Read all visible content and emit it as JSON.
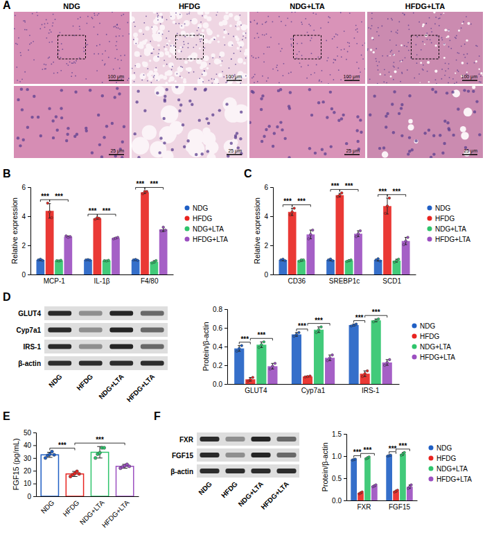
{
  "chart_data": [
    {
      "panel": "A",
      "type": "image",
      "columns": [
        "NDG",
        "HFDG",
        "NDG+LTA",
        "HFDG+LTA"
      ],
      "scale_labels": [
        "100 μm",
        "25 μm"
      ]
    },
    {
      "panel": "B",
      "type": "bar",
      "ylabel": "Relative expression",
      "categories": [
        "MCP-1",
        "IL-1β",
        "F4/80"
      ],
      "ylim": [
        0,
        6
      ],
      "yticks": [
        0,
        2,
        4,
        6
      ],
      "grid": false,
      "legend": "right",
      "series": [
        {
          "name": "NDG",
          "color": "#1f5fc4",
          "values": [
            1.0,
            1.0,
            1.0
          ],
          "errors": [
            0.05,
            0.03,
            0.04
          ],
          "points": [
            [
              1.0,
              1.05,
              0.97
            ],
            [
              1.0,
              1.02,
              0.98
            ],
            [
              1.0,
              1.03,
              0.97
            ]
          ]
        },
        {
          "name": "HFDG",
          "color": "#e8231f",
          "values": [
            4.37,
            3.85,
            5.65
          ],
          "errors": [
            0.5,
            0.05,
            0.09
          ],
          "points": [
            [
              4.9,
              4.3,
              3.9
            ],
            [
              3.8,
              3.9,
              3.85
            ],
            [
              5.55,
              5.7,
              5.7
            ]
          ]
        },
        {
          "name": "NDG+LTA",
          "color": "#2ec46b",
          "values": [
            0.95,
            0.95,
            0.87
          ],
          "errors": [
            0.03,
            0.03,
            0.08
          ],
          "points": [
            [
              0.95,
              0.93,
              0.97
            ],
            [
              0.95,
              0.93,
              0.97
            ],
            [
              0.8,
              0.85,
              0.95
            ]
          ]
        },
        {
          "name": "HFDG+LTA",
          "color": "#9b4fc0",
          "values": [
            2.6,
            2.5,
            3.1
          ],
          "errors": [
            0.05,
            0.05,
            0.15
          ],
          "points": [
            [
              2.65,
              2.55,
              2.6
            ],
            [
              2.45,
              2.5,
              2.55
            ],
            [
              3.0,
              3.25,
              3.05
            ]
          ]
        }
      ],
      "annotations": [
        {
          "text": "***",
          "category": 0,
          "pair": [
            0,
            1
          ]
        },
        {
          "text": "***",
          "category": 0,
          "pair": [
            1,
            3
          ]
        },
        {
          "text": "***",
          "category": 1,
          "pair": [
            0,
            1
          ]
        },
        {
          "text": "***",
          "category": 1,
          "pair": [
            1,
            3
          ]
        },
        {
          "text": "***",
          "category": 2,
          "pair": [
            0,
            1
          ]
        },
        {
          "text": "***",
          "category": 2,
          "pair": [
            1,
            3
          ]
        }
      ]
    },
    {
      "panel": "C",
      "type": "bar",
      "ylabel": "Relative expression",
      "categories": [
        "CD36",
        "SREBP1c",
        "SCD1"
      ],
      "ylim": [
        0,
        6
      ],
      "yticks": [
        0,
        2,
        4,
        6
      ],
      "grid": false,
      "legend": "right",
      "series": [
        {
          "name": "NDG",
          "color": "#1f5fc4",
          "values": [
            1.0,
            1.0,
            1.0
          ],
          "errors": [
            0.06,
            0.06,
            0.08
          ],
          "points": [
            [
              1.0,
              1.05,
              0.95
            ],
            [
              1.0,
              1.06,
              0.95
            ],
            [
              1.0,
              1.08,
              0.93
            ]
          ]
        },
        {
          "name": "HFDG",
          "color": "#e8231f",
          "values": [
            4.3,
            5.45,
            4.7
          ],
          "errors": [
            0.25,
            0.12,
            0.55
          ],
          "points": [
            [
              4.1,
              4.3,
              4.55
            ],
            [
              5.35,
              5.45,
              5.6
            ],
            [
              4.2,
              4.7,
              5.25
            ]
          ]
        },
        {
          "name": "NDG+LTA",
          "color": "#2ec46b",
          "values": [
            0.97,
            0.95,
            0.95
          ],
          "errors": [
            0.06,
            0.05,
            0.1
          ],
          "points": [
            [
              0.92,
              1.0,
              1.0
            ],
            [
              0.9,
              0.95,
              1.0
            ],
            [
              0.85,
              0.95,
              1.05
            ]
          ]
        },
        {
          "name": "HFDG+LTA",
          "color": "#9b4fc0",
          "values": [
            2.75,
            2.8,
            2.3
          ],
          "errors": [
            0.3,
            0.2,
            0.25
          ],
          "points": [
            [
              2.45,
              2.75,
              3.05
            ],
            [
              2.6,
              2.8,
              3.0
            ],
            [
              2.05,
              2.3,
              2.55
            ]
          ]
        }
      ],
      "annotations": [
        {
          "text": "***",
          "category": 0,
          "pair": [
            0,
            1
          ]
        },
        {
          "text": "***",
          "category": 0,
          "pair": [
            1,
            3
          ]
        },
        {
          "text": "***",
          "category": 1,
          "pair": [
            0,
            1
          ]
        },
        {
          "text": "***",
          "category": 1,
          "pair": [
            1,
            3
          ]
        },
        {
          "text": "***",
          "category": 2,
          "pair": [
            0,
            1
          ]
        },
        {
          "text": "***",
          "category": 2,
          "pair": [
            1,
            3
          ]
        }
      ]
    },
    {
      "panel": "D",
      "type": "bar",
      "ylabel": "Protein/β-actin",
      "blot": {
        "rows": [
          "GLUT4",
          "Cyp7a1",
          "IRS-1",
          "β-actin"
        ],
        "lanes": [
          "NDG",
          "HFDG",
          "NDG+LTA",
          "HFDG+LTA"
        ]
      },
      "categories": [
        "GLUT4",
        "Cyp7a1",
        "IRS-1"
      ],
      "ylim": [
        0,
        0.8
      ],
      "yticks": [
        {
          "value": 0,
          "label": "0.0"
        },
        0.2,
        0.4,
        0.6,
        0.8
      ],
      "grid": false,
      "legend": "right",
      "series": [
        {
          "name": "NDG",
          "color": "#1f5fc4",
          "values": [
            0.38,
            0.53,
            0.63
          ],
          "errors": [
            0.03,
            0.02,
            0.01
          ],
          "points": [
            [
              0.35,
              0.38,
              0.41
            ],
            [
              0.51,
              0.53,
              0.55
            ],
            [
              0.62,
              0.63,
              0.64
            ]
          ]
        },
        {
          "name": "HFDG",
          "color": "#e8231f",
          "values": [
            0.05,
            0.08,
            0.11
          ],
          "errors": [
            0.02,
            0.005,
            0.03
          ],
          "points": [
            [
              0.03,
              0.05,
              0.07
            ],
            [
              0.075,
              0.08,
              0.085
            ],
            [
              0.08,
              0.11,
              0.14
            ]
          ]
        },
        {
          "name": "NDG+LTA",
          "color": "#2ec46b",
          "values": [
            0.42,
            0.58,
            0.68
          ],
          "errors": [
            0.03,
            0.03,
            0.015
          ],
          "points": [
            [
              0.39,
              0.42,
              0.45
            ],
            [
              0.55,
              0.58,
              0.61
            ],
            [
              0.665,
              0.68,
              0.695
            ]
          ]
        },
        {
          "name": "HFDG+LTA",
          "color": "#9b4fc0",
          "values": [
            0.19,
            0.28,
            0.23
          ],
          "errors": [
            0.03,
            0.03,
            0.03
          ],
          "points": [
            [
              0.16,
              0.19,
              0.22
            ],
            [
              0.25,
              0.28,
              0.31
            ],
            [
              0.2,
              0.23,
              0.26
            ]
          ]
        }
      ],
      "annotations": [
        {
          "text": "***",
          "category": 0,
          "pair": [
            0,
            1
          ]
        },
        {
          "text": "***",
          "category": 0,
          "pair": [
            1,
            3
          ]
        },
        {
          "text": "***",
          "category": 1,
          "pair": [
            0,
            1
          ]
        },
        {
          "text": "***",
          "category": 1,
          "pair": [
            1,
            3
          ]
        },
        {
          "text": "***",
          "category": 2,
          "pair": [
            0,
            1
          ]
        },
        {
          "text": "***",
          "category": 2,
          "pair": [
            1,
            3
          ]
        }
      ]
    },
    {
      "panel": "E",
      "type": "bar",
      "ylabel": "FGF15 (pg/mL)",
      "categories": [
        "NDG",
        "HFDG",
        "NDG+LTA",
        "HFDG+LTA"
      ],
      "values": [
        32.5,
        17.5,
        34.5,
        23.5
      ],
      "errors": [
        2,
        2,
        4.5,
        1.5
      ],
      "points": [
        [
          30,
          32,
          33,
          35,
          32.5
        ],
        [
          15.5,
          17,
          18,
          19.5,
          17.5
        ],
        [
          30,
          33,
          34,
          38,
          38
        ],
        [
          22,
          23,
          24,
          25,
          23.5
        ]
      ],
      "colors": [
        "#1f5fc4",
        "#e8231f",
        "#2ec46b",
        "#9b4fc0"
      ],
      "ylim": [
        0,
        50
      ],
      "yticks": [
        0,
        10,
        20,
        30,
        40,
        50
      ],
      "grid": false,
      "annotations": [
        {
          "text": "***",
          "pair": [
            0,
            1
          ]
        },
        {
          "text": "***",
          "pair": [
            1,
            3
          ]
        }
      ]
    },
    {
      "panel": "F",
      "type": "bar",
      "ylabel": "Protein/β-actin",
      "blot": {
        "rows": [
          "FXR",
          "FGF15",
          "β-actin"
        ],
        "lanes": [
          "NDG",
          "HFDG",
          "NDG+LTA",
          "HFDG+LTA"
        ]
      },
      "categories": [
        "FXR",
        "FGF15"
      ],
      "ylim": [
        0,
        1.5
      ],
      "yticks": [
        {
          "value": 0,
          "label": "0.0"
        },
        0.5,
        {
          "value": 1,
          "label": "1.0"
        },
        1.5
      ],
      "grid": false,
      "legend": "right",
      "series": [
        {
          "name": "NDG",
          "color": "#1f5fc4",
          "values": [
            0.92,
            1.01
          ],
          "errors": [
            0.01,
            0.01
          ],
          "points": [
            [
              0.91,
              0.92,
              0.93
            ],
            [
              1.0,
              1.01,
              1.02
            ]
          ]
        },
        {
          "name": "HFDG",
          "color": "#e8231f",
          "values": [
            0.17,
            0.21
          ],
          "errors": [
            0.02,
            0.02
          ],
          "points": [
            [
              0.15,
              0.17,
              0.19
            ],
            [
              0.19,
              0.21,
              0.23
            ]
          ]
        },
        {
          "name": "NDG+LTA",
          "color": "#2ec46b",
          "values": [
            0.96,
            1.05
          ],
          "errors": [
            0.02,
            0.03
          ],
          "points": [
            [
              0.94,
              0.96,
              0.98
            ],
            [
              1.02,
              1.05,
              1.08
            ]
          ]
        },
        {
          "name": "HFDG+LTA",
          "color": "#9b4fc0",
          "values": [
            0.33,
            0.31
          ],
          "errors": [
            0.02,
            0.04
          ],
          "points": [
            [
              0.31,
              0.33,
              0.35
            ],
            [
              0.27,
              0.31,
              0.35
            ]
          ]
        }
      ],
      "annotations": [
        {
          "text": "***",
          "category": 0,
          "pair": [
            0,
            1
          ]
        },
        {
          "text": "***",
          "category": 0,
          "pair": [
            1,
            3
          ]
        },
        {
          "text": "***",
          "category": 1,
          "pair": [
            0,
            1
          ]
        },
        {
          "text": "***",
          "category": 1,
          "pair": [
            1,
            3
          ]
        }
      ]
    }
  ]
}
